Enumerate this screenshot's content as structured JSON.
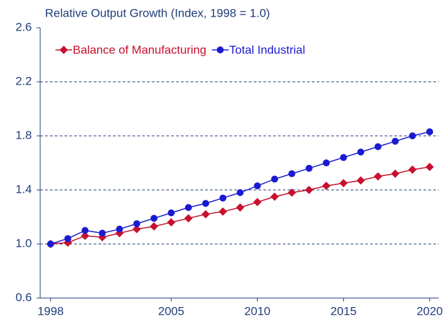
{
  "chart_data": {
    "type": "line",
    "title": "Relative Output Growth (Index, 1998 = 1.0)",
    "x": [
      1998,
      1999,
      2000,
      2001,
      2002,
      2003,
      2004,
      2005,
      2006,
      2007,
      2008,
      2009,
      2010,
      2011,
      2012,
      2013,
      2014,
      2015,
      2016,
      2017,
      2018,
      2019,
      2020
    ],
    "series": [
      {
        "name": "Balance of Manufacturing",
        "color": "#c8102e",
        "marker": "diamond",
        "values": [
          1.0,
          1.01,
          1.06,
          1.05,
          1.08,
          1.11,
          1.13,
          1.16,
          1.19,
          1.22,
          1.24,
          1.27,
          1.31,
          1.35,
          1.38,
          1.4,
          1.43,
          1.45,
          1.47,
          1.5,
          1.52,
          1.55,
          1.57
        ]
      },
      {
        "name": "Total Industrial",
        "color": "#1a1ad0",
        "marker": "circle",
        "values": [
          1.0,
          1.04,
          1.1,
          1.08,
          1.11,
          1.15,
          1.19,
          1.23,
          1.27,
          1.3,
          1.34,
          1.38,
          1.43,
          1.48,
          1.52,
          1.56,
          1.6,
          1.64,
          1.68,
          1.72,
          1.76,
          1.8,
          1.83
        ]
      }
    ],
    "xlim": [
      1998,
      2020
    ],
    "xticks": [
      1998,
      2005,
      2010,
      2015,
      2020
    ],
    "ylim": [
      0.6,
      2.6
    ],
    "yticks": [
      0.6,
      {
        "value": 1,
        "label": "1.0"
      },
      1.4,
      1.8,
      2.2,
      2.6
    ],
    "grid": true,
    "legend": "upper left"
  }
}
